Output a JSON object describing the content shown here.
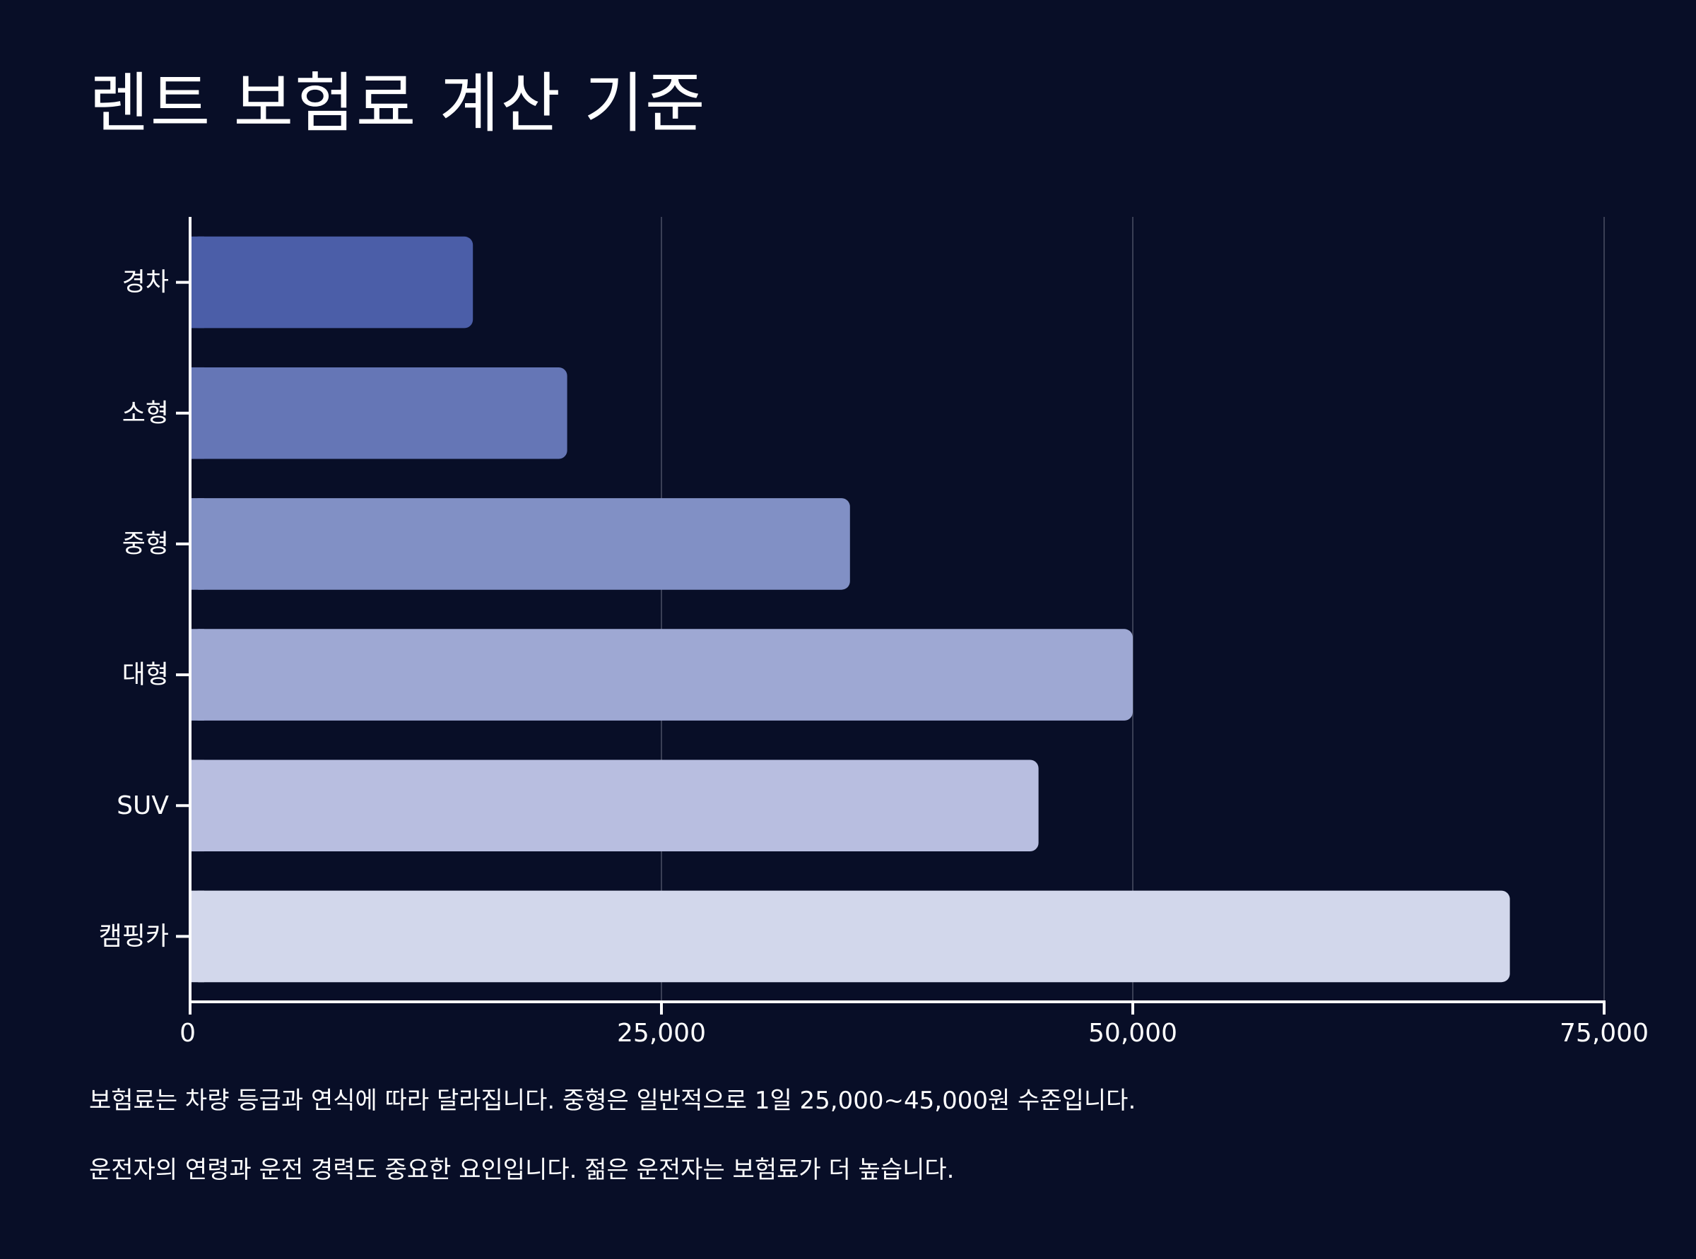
{
  "title": "렌트 보험료 계산 기준",
  "chart_data": {
    "type": "bar",
    "orientation": "horizontal",
    "categories": [
      "경차",
      "소형",
      "중형",
      "대형",
      "SUV",
      "캠핑카"
    ],
    "values": [
      15000,
      20000,
      35000,
      50000,
      45000,
      70000
    ],
    "xlim": [
      0,
      75000
    ],
    "xticks": [
      0,
      25000,
      50000,
      75000
    ],
    "xtick_labels": [
      "0",
      "25,000",
      "50,000",
      "75,000"
    ],
    "grid": "vertical",
    "xlabel": "",
    "ylabel": "",
    "bar_colors": [
      "#4b5ea8",
      "#6576b6",
      "#8190c5",
      "#9ea8d3",
      "#b8bee0",
      "#d2d7eb"
    ]
  },
  "notes": [
    "보험료는 차량 등급과 연식에 따라 달라집니다. 중형은 일반적으로 1일 25,000~45,000원 수준입니다.",
    "운전자의 연령과 운전 경력도 중요한 요인입니다. 젊은 운전자는 보험료가 더 높습니다."
  ],
  "colors": {
    "background": "#080e27",
    "text": "#ffffff",
    "axis": "#ffffff",
    "grid": "#3a3f55"
  }
}
